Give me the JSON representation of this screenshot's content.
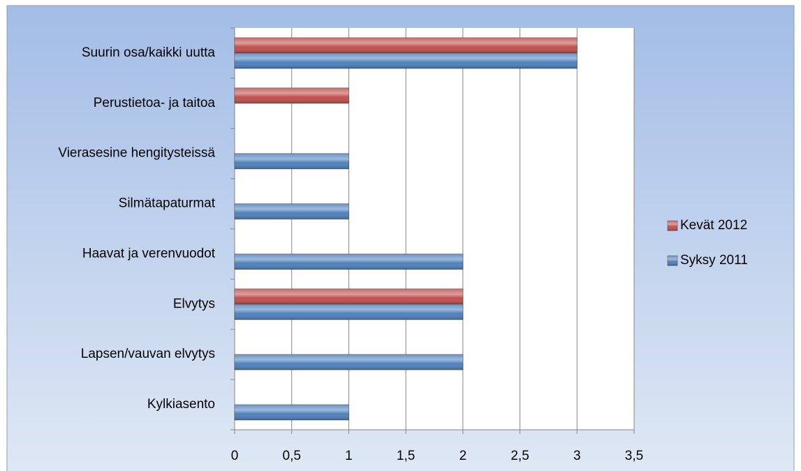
{
  "chart_data": {
    "type": "hbar",
    "categories": [
      "Suurin osa/kaikki uutta",
      "Perustietoa- ja taitoa",
      "Vierasesine hengitysteissä",
      "Silmätapaturmat",
      "Haavat ja verenvuodot",
      "Elvytys",
      "Lapsen/vauvan elvytys",
      "Kylkiasento"
    ],
    "series": [
      {
        "name": "Kevät 2012",
        "color": "#c0504d",
        "values": [
          3,
          1,
          0,
          0,
          0,
          2,
          0,
          0
        ]
      },
      {
        "name": "Syksy 2011",
        "color": "#4f81bd",
        "values": [
          3,
          0,
          1,
          1,
          2,
          2,
          2,
          1
        ]
      }
    ],
    "xlim": [
      0,
      3.5
    ],
    "xticks": [
      0,
      {
        "value": 0.5,
        "label": "0,5"
      },
      1,
      {
        "value": 1.5,
        "label": "1,5"
      },
      2,
      {
        "value": 2.5,
        "label": "2,5"
      },
      3,
      {
        "value": 3.5,
        "label": "3,5"
      }
    ],
    "grid": true,
    "legend": "right"
  }
}
